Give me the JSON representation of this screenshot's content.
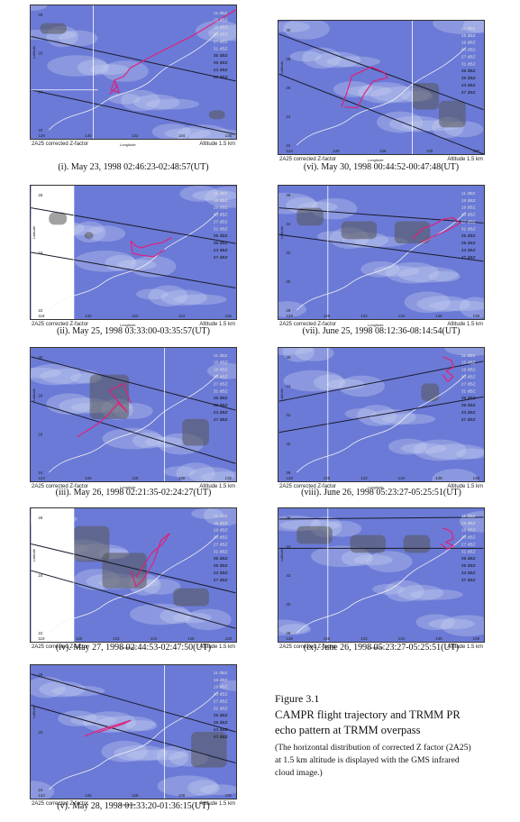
{
  "panels": [
    {
      "caption": "(i). May 23, 1998 02:46:23-02:48:57(UT)",
      "product": "2A25  corrected  Z-factor",
      "lon_label": "Longitude",
      "alt": "Altitude 1.5 km",
      "lat_label": "Latitude",
      "xticks": [
        "128",
        "130",
        "132",
        "134",
        "136"
      ],
      "yticks": [
        "28",
        "26",
        "24",
        "22"
      ]
    },
    {
      "caption": "(ii). May 25, 1998 03:33:00-03:35:57(UT)",
      "product": "2A25  corrected  Z-factor",
      "lon_label": "Longitude",
      "alt": "Altitude 1.5 km",
      "lat_label": "Latitude",
      "xticks": [
        "118",
        "120",
        "122",
        "124",
        "126"
      ],
      "yticks": [
        "26",
        "24",
        "22"
      ]
    },
    {
      "caption": "(iii). May 26, 1998 02:21:35-02:24:27(UT)",
      "product": "2A25  corrected  Z-factor",
      "lon_label": "Longitude",
      "alt": "Altitude 1.5 km",
      "lat_label": "Latitude",
      "xticks": [
        "124",
        "126",
        "128",
        "130",
        "132"
      ],
      "yticks": [
        "30",
        "28",
        "26",
        "24"
      ]
    },
    {
      "caption": "(iv). May 27, 1998 02:44:53-02:47:50(UT)",
      "product": "2A25  corrected  Z-factor",
      "lon_label": "Longitude",
      "alt": "Altitude 1.5 km",
      "lat_label": "Latitude",
      "xticks": [
        "118",
        "120",
        "122",
        "124",
        "126",
        "128"
      ],
      "yticks": [
        "26",
        "24",
        "22"
      ]
    },
    {
      "caption": "(v). May 28, 1998 01:33:20-01:36:15(UT)",
      "product": "2A25  corrected  Z-factor",
      "lon_label": "Longitude",
      "alt": "Altitude 1.5 km",
      "lat_label": "Latitude",
      "xticks": [
        "124",
        "126",
        "128",
        "130",
        "132"
      ],
      "yticks": [
        "28",
        "26",
        "24"
      ]
    },
    {
      "caption": "(vi). May 30, 1998 00:44:52-00:47:48(UT)",
      "product": "2A25  corrected  Z-factor",
      "lon_label": "Longitude",
      "alt": "Altitude 1.5 km",
      "lat_label": "Latitude",
      "xticks": [
        "124",
        "126",
        "128",
        "130",
        "132"
      ],
      "yticks": [
        "30",
        "28",
        "26",
        "24",
        "22"
      ]
    },
    {
      "caption": "(vii). June 25, 1998 08:12:36-08:14:54(UT)",
      "product": "2A25  corrected  Z-factor",
      "lon_label": "Longitude",
      "alt": "Altitude 1.5 km",
      "lat_label": "Latitude",
      "xticks": [
        "128",
        "130",
        "132",
        "134",
        "136",
        "138"
      ],
      "yticks": [
        "36",
        "34",
        "32",
        "30",
        "28"
      ]
    },
    {
      "caption": "(viii). June 26, 1998 05:23:27-05:25:51(UT)",
      "product": "2A25  corrected  Z-factor",
      "lon_label": "Longitude",
      "alt": "Altitude 1.5 km",
      "lat_label": "Latitude",
      "xticks": [
        "128",
        "130",
        "132",
        "134",
        "136",
        "138"
      ],
      "yticks": [
        "36",
        "34",
        "32",
        "30",
        "28"
      ]
    },
    {
      "caption": "(ix). June 26, 1998 05:23:27-05:25:51(UT)",
      "product": "2A25  corrected  Z-factor",
      "lon_label": "Longitude",
      "alt": "Altitude 1.5 km",
      "lat_label": "Latitude",
      "xticks": [
        "128",
        "130",
        "132",
        "134",
        "136",
        "138"
      ],
      "yticks": [
        "36",
        "34",
        "32",
        "30",
        "28"
      ]
    }
  ],
  "legend_dbz": [
    "11 dBZ",
    "15 dBZ",
    "19 dBZ",
    "23 dBZ",
    "27 dBZ",
    "31 dBZ",
    "35 dBZ",
    "39 dBZ",
    "43 dBZ",
    "47 dBZ"
  ],
  "figure": {
    "title": "Figure 3.1",
    "subtitle_line1": "CAMPR flight trajectory and TRMM PR",
    "subtitle_line2": "echo pattern at TRMM overpass",
    "note_line1": "(The horizontal distribution of corrected Z factor (2A25)",
    "note_line2": "at 1.5 km altitude is displayed with the GMS infrared",
    "note_line3": "cloud image.)"
  },
  "colors": {
    "sea": "#6b7ad6",
    "trajectory": "#e0207a",
    "swath": "#1a1a2a",
    "cloud": "#c9d0f0"
  }
}
